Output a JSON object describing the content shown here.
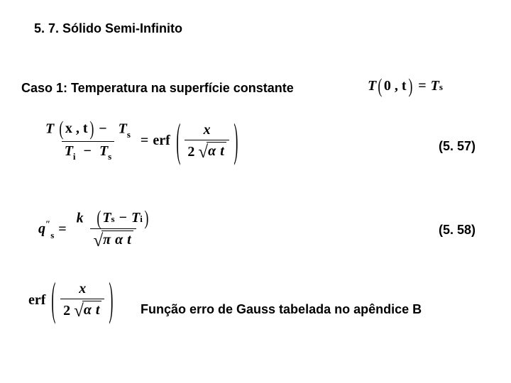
{
  "colors": {
    "text": "#000000",
    "background": "#ffffff"
  },
  "typography": {
    "heading_font": "Arial, Helvetica, sans-serif",
    "heading_size_pt": 14,
    "heading_weight": "bold",
    "math_font": "Times New Roman, Times, serif",
    "math_size_pt": 15,
    "math_weight": "bold"
  },
  "heading": "5. 7. Sólido Semi-Infinito",
  "case1": {
    "label": "Caso 1: Temperatura na superfície constante",
    "boundary_condition": {
      "lhs_func": "T",
      "lhs_args": "0 , t",
      "rhs": "T",
      "rhs_sub": "s"
    }
  },
  "eq557": {
    "number": "(5. 57)",
    "lhs": {
      "num_left": "T",
      "num_left_args": "x , t",
      "num_minus": "−",
      "num_right": "T",
      "num_right_sub": "s",
      "den_left": "T",
      "den_left_sub": "i",
      "den_minus": "−",
      "den_right": "T",
      "den_right_sub": "s"
    },
    "eq": "=",
    "rhs_func": "erf",
    "rhs_arg": {
      "num": "x",
      "den_coeff": "2",
      "den_under_sqrt_alpha": "α",
      "den_under_sqrt_t": "t"
    }
  },
  "eq558": {
    "number": "(5. 58)",
    "lhs_sym": "q",
    "lhs_sup": "″",
    "lhs_sub": "s",
    "eq": "=",
    "num_k": "k",
    "num_left": "T",
    "num_left_sub": "s",
    "num_minus": "−",
    "num_right": "T",
    "num_right_sub": "i",
    "den_pi": "π",
    "den_alpha": "α",
    "den_t": "t"
  },
  "erf_block": {
    "func": "erf",
    "arg": {
      "num": "x",
      "den_coeff": "2",
      "den_under_sqrt_alpha": "α",
      "den_under_sqrt_t": "t"
    }
  },
  "footnote": "Função erro de Gauss tabelada no apêndice B"
}
